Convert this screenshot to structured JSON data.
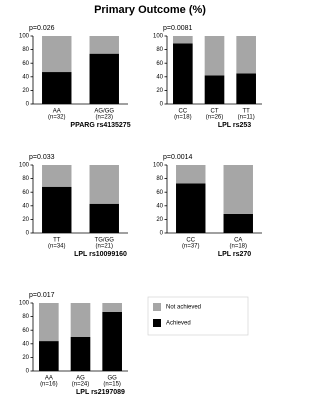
{
  "title": "Primary Outcome (%)",
  "chart_data": [
    {
      "type": "bar",
      "stacked": true,
      "p_value": "p=0.026",
      "xlabel": "PPARG rs4135275",
      "categories": [
        "AA",
        "AG/GG"
      ],
      "category_counts": [
        "(n=32)",
        "(n=23)"
      ],
      "series": [
        {
          "name": "Achieved",
          "color": "#000000",
          "values": [
            47,
            74
          ]
        },
        {
          "name": "Not achieved",
          "color": "#a6a6a6",
          "values": [
            53,
            26
          ]
        }
      ],
      "ylim": [
        0,
        100
      ],
      "yticks": [
        0,
        20,
        40,
        60,
        80,
        100
      ]
    },
    {
      "type": "bar",
      "stacked": true,
      "p_value": "p=0.0081",
      "xlabel": "LPL rs253",
      "categories": [
        "CC",
        "CT",
        "TT"
      ],
      "category_counts": [
        "(n=18)",
        "(n=26)",
        "(n=11)"
      ],
      "series": [
        {
          "name": "Achieved",
          "color": "#000000",
          "values": [
            89,
            42,
            45
          ]
        },
        {
          "name": "Not achieved",
          "color": "#a6a6a6",
          "values": [
            11,
            58,
            55
          ]
        }
      ],
      "ylim": [
        0,
        100
      ],
      "yticks": [
        0,
        20,
        40,
        60,
        80,
        100
      ]
    },
    {
      "type": "bar",
      "stacked": true,
      "p_value": "p=0.033",
      "xlabel": "LPL rs10099160",
      "categories": [
        "TT",
        "TG/GG"
      ],
      "category_counts": [
        "(n=34)",
        "(n=21)"
      ],
      "series": [
        {
          "name": "Achieved",
          "color": "#000000",
          "values": [
            68,
            43
          ]
        },
        {
          "name": "Not achieved",
          "color": "#a6a6a6",
          "values": [
            32,
            57
          ]
        }
      ],
      "ylim": [
        0,
        100
      ],
      "yticks": [
        0,
        20,
        40,
        60,
        80,
        100
      ]
    },
    {
      "type": "bar",
      "stacked": true,
      "p_value": "p=0.0014",
      "xlabel": "LPL rs270",
      "categories": [
        "CC",
        "CA"
      ],
      "category_counts": [
        "(n=37)",
        "(n=18)"
      ],
      "series": [
        {
          "name": "Achieved",
          "color": "#000000",
          "values": [
            73,
            28
          ]
        },
        {
          "name": "Not achieved",
          "color": "#a6a6a6",
          "values": [
            27,
            72
          ]
        }
      ],
      "ylim": [
        0,
        100
      ],
      "yticks": [
        0,
        20,
        40,
        60,
        80,
        100
      ]
    },
    {
      "type": "bar",
      "stacked": true,
      "p_value": "p=0.017",
      "xlabel": "LPL rs2197089",
      "categories": [
        "AA",
        "AG",
        "GG"
      ],
      "category_counts": [
        "(n=16)",
        "(n=24)",
        "(n=15)"
      ],
      "series": [
        {
          "name": "Achieved",
          "color": "#000000",
          "values": [
            44,
            50,
            87
          ]
        },
        {
          "name": "Not achieved",
          "color": "#a6a6a6",
          "values": [
            56,
            50,
            13
          ]
        }
      ],
      "ylim": [
        0,
        100
      ],
      "yticks": [
        0,
        20,
        40,
        60,
        80,
        100
      ],
      "legend": "right"
    }
  ]
}
